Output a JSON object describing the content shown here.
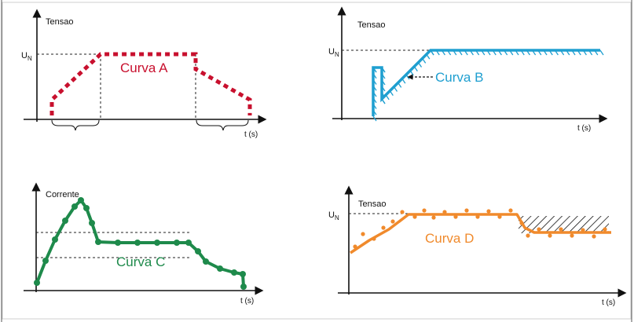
{
  "panels": {
    "a": {
      "y_label": "Tensao",
      "un_label": "U",
      "un_sub": "N",
      "x_label": "t (s)",
      "curve_label": "Curva A",
      "color": "#c8102e"
    },
    "b": {
      "y_label": "Tensao",
      "un_label": "U",
      "un_sub": "N",
      "x_label": "t (s)",
      "curve_label": "Curva B",
      "color": "#1f9fd0"
    },
    "c": {
      "y_label": "Corrente",
      "x_label": "t (s)",
      "curve_label": "Curva C",
      "color": "#1e8a4b"
    },
    "d": {
      "y_label": "Tensao",
      "un_label": "U",
      "un_sub": "N",
      "x_label": "t (s)",
      "curve_label": "Curva D",
      "color": "#f08a2c"
    }
  }
}
